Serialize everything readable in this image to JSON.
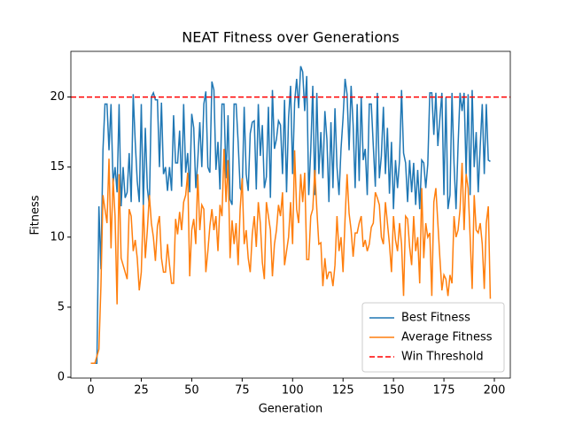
{
  "chart_data": {
    "type": "line",
    "title": "NEAT Fitness over Generations",
    "x_label": "Generation",
    "y_label": "Fitness",
    "x": [
      0,
      1,
      2,
      3,
      4,
      5,
      6,
      7,
      8,
      9,
      10,
      11,
      12,
      13,
      14,
      15,
      16,
      17,
      18,
      19,
      20,
      21,
      22,
      23,
      24,
      25,
      26,
      27,
      28,
      29,
      30,
      31,
      32,
      33,
      34,
      35,
      36,
      37,
      38,
      39,
      40,
      41,
      42,
      43,
      44,
      45,
      46,
      47,
      48,
      49,
      50,
      51,
      52,
      53,
      54,
      55,
      56,
      57,
      58,
      59,
      60,
      61,
      62,
      63,
      64,
      65,
      66,
      67,
      68,
      69,
      70,
      71,
      72,
      73,
      74,
      75,
      76,
      77,
      78,
      79,
      80,
      81,
      82,
      83,
      84,
      85,
      86,
      87,
      88,
      89,
      90,
      91,
      92,
      93,
      94,
      95,
      96,
      97,
      98,
      99,
      100,
      101,
      102,
      103,
      104,
      105,
      106,
      107,
      108,
      109,
      110,
      111,
      112,
      113,
      114,
      115,
      116,
      117,
      118,
      119,
      120,
      121,
      122,
      123,
      124,
      125,
      126,
      127,
      128,
      129,
      130,
      131,
      132,
      133,
      134,
      135,
      136,
      137,
      138,
      139,
      140,
      141,
      142,
      143,
      144,
      145,
      146,
      147,
      148,
      149,
      150,
      151,
      152,
      153,
      154,
      155,
      156,
      157,
      158,
      159,
      160,
      161,
      162,
      163,
      164,
      165,
      166,
      167,
      168,
      169,
      170,
      171,
      172,
      173,
      174,
      175,
      176,
      177,
      178,
      179,
      180,
      181,
      182,
      183,
      184,
      185,
      186,
      187,
      188,
      189,
      190,
      191,
      192,
      193,
      194,
      195,
      196,
      197,
      198
    ],
    "series": [
      {
        "name": "Best Fitness",
        "color": "#1f77b4",
        "values": [
          1,
          1,
          1,
          1,
          12.2,
          7.7,
          16.2,
          19.5,
          19.5,
          16.2,
          19.5,
          13.8,
          15,
          13.2,
          19.5,
          12.2,
          15,
          12.8,
          13.2,
          16,
          12.5,
          20.2,
          16.8,
          14,
          12.5,
          19.5,
          12.2,
          17.8,
          13.5,
          12.2,
          20,
          20.3,
          19.8,
          19.8,
          15,
          19.6,
          14.5,
          15,
          13.3,
          15,
          13.3,
          18.7,
          15.3,
          15.3,
          17.6,
          13.6,
          19.5,
          14.6,
          16,
          13.2,
          18.8,
          17.8,
          13.5,
          15.5,
          18.2,
          15,
          19.5,
          20.4,
          15,
          14.6,
          21.1,
          20.5,
          14.8,
          16.8,
          13.4,
          19.5,
          19.5,
          14.2,
          18.7,
          12.7,
          12.3,
          19.5,
          19.5,
          16.8,
          13.5,
          13.2,
          19.3,
          14.5,
          13.3,
          17.4,
          18.2,
          18.3,
          13.4,
          19.5,
          15.8,
          18,
          13.5,
          14.3,
          19.3,
          12.8,
          20.5,
          16.3,
          17,
          18.3,
          18,
          14.5,
          19.8,
          13.2,
          18.5,
          20.8,
          14.5,
          19.6,
          21.3,
          19.2,
          22.2,
          21.8,
          19,
          21.5,
          13,
          16.2,
          20.8,
          13,
          20.3,
          14.5,
          17.5,
          14.2,
          19,
          17,
          12.5,
          18.2,
          13.5,
          19.2,
          15,
          13,
          16.3,
          18.5,
          21.3,
          20.2,
          16.2,
          20.8,
          18,
          13.5,
          19.5,
          14,
          20,
          15.5,
          16.3,
          13,
          19.5,
          19.5,
          16.5,
          13.6,
          20.3,
          14.2,
          15.8,
          19.3,
          14.5,
          17.8,
          13.1,
          16.8,
          12,
          15.5,
          13.5,
          15.5,
          20.5,
          16,
          15.3,
          12.5,
          15.5,
          13.2,
          15.3,
          12.3,
          14.8,
          12,
          15.5,
          15.3,
          13.5,
          15.2,
          20.3,
          20.3,
          17.3,
          20.3,
          16.5,
          18.5,
          20.3,
          13,
          20,
          12,
          13,
          20.3,
          15.3,
          12,
          16.5,
          20.3,
          19,
          20.3,
          14.5,
          20.2,
          13,
          20.5,
          15,
          17.5,
          13.2,
          16.5,
          19.5,
          14.5,
          19.5,
          15.5,
          15.4
        ]
      },
      {
        "name": "Average Fitness",
        "color": "#ff7f0e",
        "values": [
          1,
          1,
          1,
          1.5,
          2,
          6.5,
          13,
          12,
          11,
          15.6,
          9.2,
          14.2,
          11.5,
          5.2,
          14.5,
          8.5,
          8,
          7.5,
          7,
          12,
          11.5,
          9,
          9.8,
          8.5,
          6.2,
          7.5,
          12.3,
          8.5,
          10.5,
          13,
          11,
          10,
          8.3,
          10.8,
          11.5,
          8.5,
          7.5,
          7.5,
          9.5,
          8,
          6.7,
          6.7,
          11.3,
          10.2,
          11.8,
          10.5,
          12.5,
          13,
          14.6,
          7.2,
          10.5,
          11.3,
          9.5,
          14.5,
          10.5,
          12.3,
          12,
          7.5,
          9,
          10.8,
          12,
          10.5,
          11.5,
          9,
          12.3,
          11.5,
          16.3,
          12.5,
          15.5,
          8.5,
          11.2,
          9.5,
          11,
          8,
          12,
          14.2,
          9.5,
          10.5,
          8.5,
          7.5,
          10.2,
          11.5,
          9.3,
          12.5,
          11,
          8.2,
          7,
          12.5,
          11.5,
          10.5,
          7.2,
          9.5,
          10.5,
          12.3,
          11.5,
          13.2,
          8,
          9,
          10,
          12.5,
          9.5,
          16.2,
          12,
          11,
          14.5,
          12.5,
          14.6,
          8.4,
          8.4,
          11.5,
          12,
          14.8,
          12,
          9.5,
          9.6,
          6.5,
          8.5,
          7,
          7.5,
          7.5,
          6.5,
          8,
          11.5,
          9,
          10,
          7.5,
          11.3,
          14.5,
          11.7,
          10.5,
          8.6,
          10.3,
          10.3,
          11,
          11.5,
          9.3,
          9.8,
          9,
          9.5,
          10.7,
          11,
          13.2,
          12.8,
          12.3,
          10,
          9.5,
          12.5,
          11,
          9.5,
          7.5,
          11.5,
          9.8,
          9,
          11,
          9.5,
          5.8,
          11.5,
          11.3,
          9.3,
          8,
          11.5,
          9,
          10,
          6.7,
          13.5,
          8.5,
          11,
          10,
          10.3,
          5.8,
          12.5,
          13.5,
          11,
          8.5,
          6.2,
          7.3,
          7,
          5.8,
          7.3,
          6.7,
          11.5,
          10,
          10.5,
          12,
          15.3,
          10.5,
          14.5,
          13.5,
          10,
          6.3,
          13,
          10.5,
          10.3,
          11,
          9.5,
          6.3,
          11,
          12.2,
          5.6
        ]
      }
    ],
    "threshold": {
      "name": "Win Threshold",
      "value": 20,
      "color": "#ff0000"
    },
    "xlim": [
      -9.9,
      207.9
    ],
    "ylim": [
      -0.06,
      23.26
    ],
    "xticks": [
      0,
      25,
      50,
      75,
      100,
      125,
      150,
      175,
      200
    ],
    "yticks": [
      0,
      5,
      10,
      15,
      20
    ],
    "legend": "lower right"
  }
}
